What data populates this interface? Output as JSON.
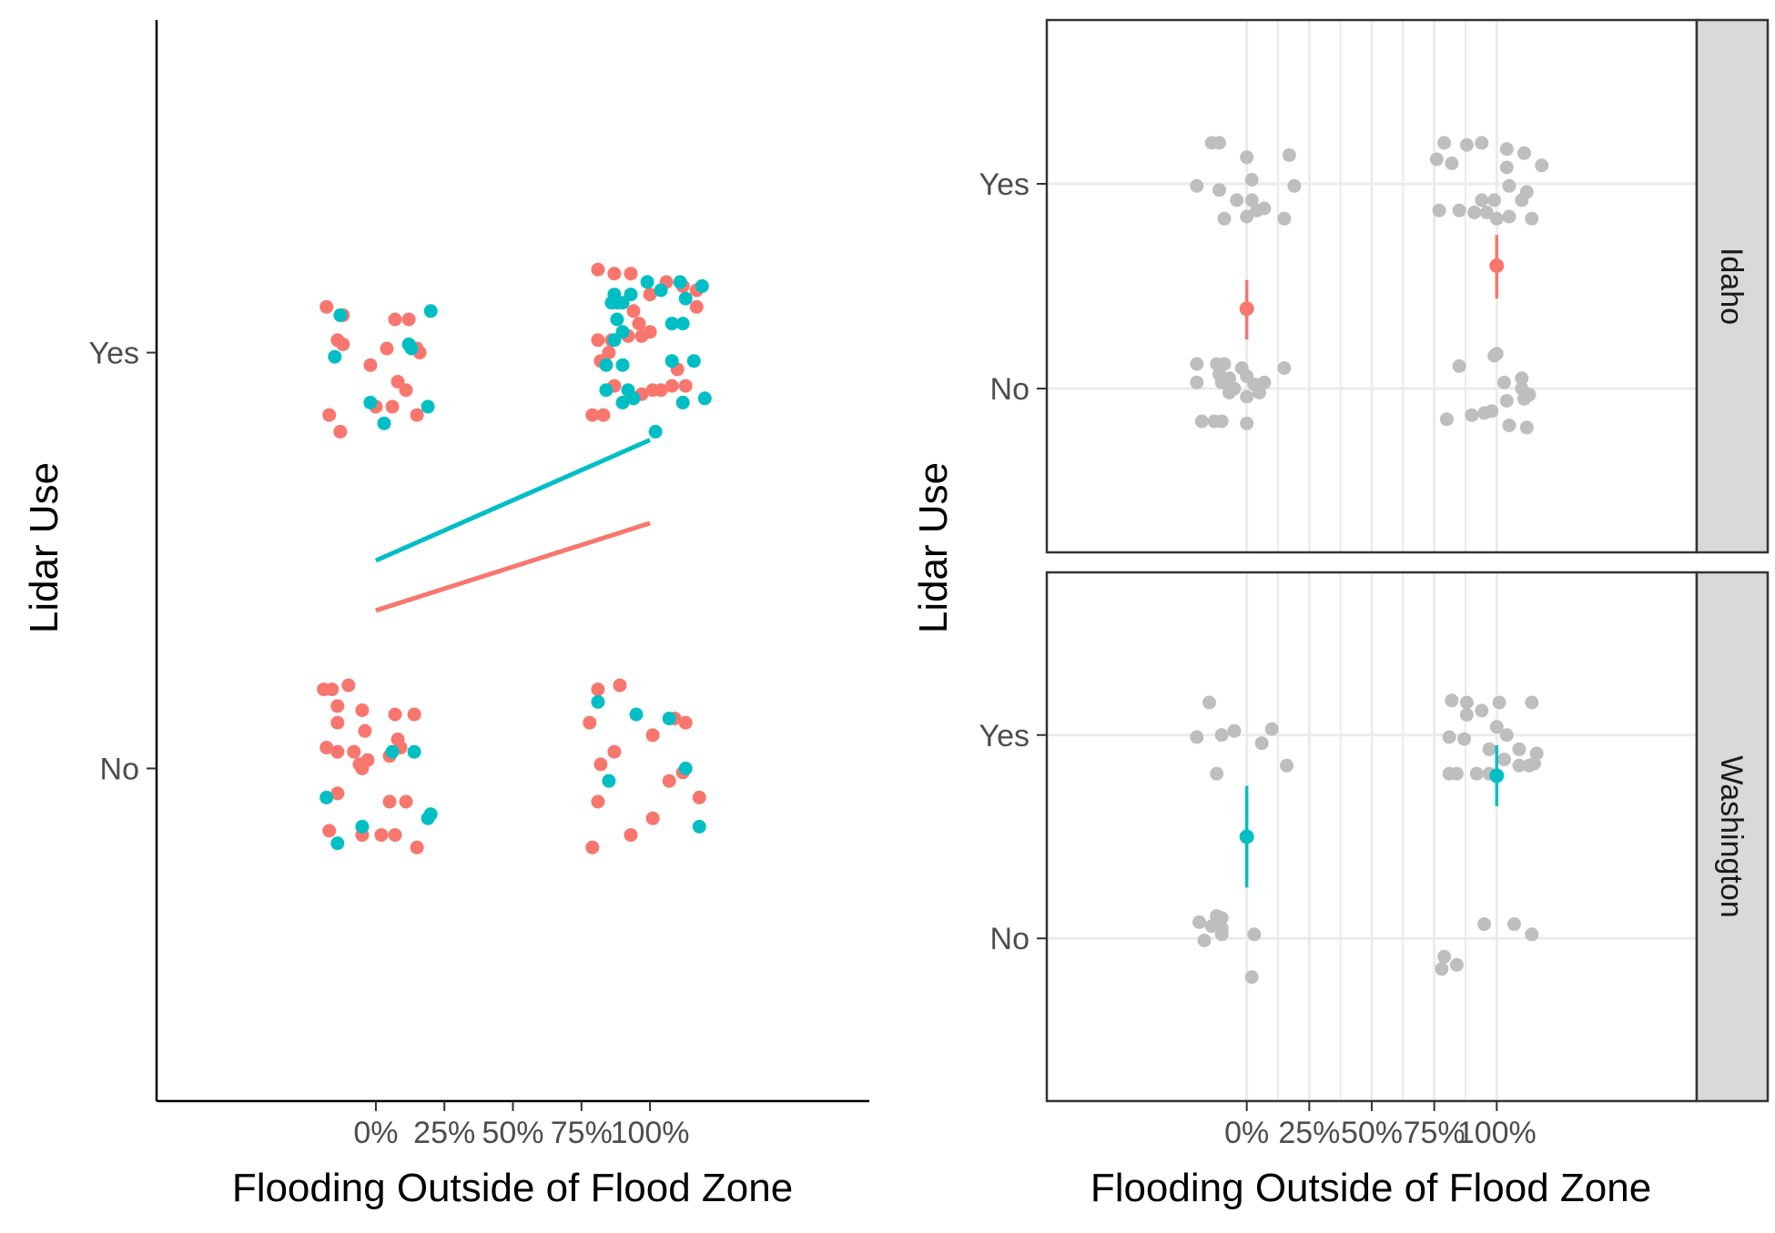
{
  "chart_data": [
    {
      "type": "scatter",
      "xlabel": "Flooding Outside of Flood Zone",
      "ylabel": "Lidar Use",
      "x_ticks": [
        "0%",
        "25%",
        "50%",
        "75%",
        "100%"
      ],
      "x_tick_values": [
        0,
        0.25,
        0.5,
        0.75,
        1
      ],
      "xlim": [
        -0.8,
        1.8
      ],
      "y_ticks": [
        "No",
        "Yes"
      ],
      "y_tick_values": [
        0,
        1
      ],
      "ylim": [
        -0.8,
        1.8
      ],
      "grid": false,
      "colors": {
        "series_a": "#F8766D",
        "series_b": "#00BFC4"
      },
      "series": [
        {
          "color": "#F8766D",
          "points": [
            [
              -0.18,
              1.11
            ],
            [
              -0.12,
              1.09
            ],
            [
              -0.14,
              1.03
            ],
            [
              -0.12,
              1.02
            ],
            [
              0.04,
              1.01
            ],
            [
              0.07,
              1.08
            ],
            [
              0.16,
              1.0
            ],
            [
              0.12,
              1.08
            ],
            [
              0.15,
              1.01
            ],
            [
              -0.02,
              0.97
            ],
            [
              0.08,
              0.93
            ],
            [
              0.11,
              0.91
            ],
            [
              -0.17,
              0.85
            ],
            [
              -0.13,
              0.81
            ],
            [
              0.0,
              0.87
            ],
            [
              0.06,
              0.87
            ],
            [
              0.15,
              0.85
            ],
            [
              0.81,
              1.2
            ],
            [
              0.87,
              1.19
            ],
            [
              0.93,
              1.19
            ],
            [
              0.94,
              1.1
            ],
            [
              1.0,
              1.14
            ],
            [
              1.06,
              1.17
            ],
            [
              1.12,
              1.16
            ],
            [
              1.17,
              1.15
            ],
            [
              1.17,
              1.11
            ],
            [
              0.81,
              1.03
            ],
            [
              0.86,
              1.03
            ],
            [
              0.92,
              1.04
            ],
            [
              0.96,
              1.07
            ],
            [
              0.97,
              1.04
            ],
            [
              1.0,
              1.05
            ],
            [
              0.82,
              0.98
            ],
            [
              0.85,
              1.0
            ],
            [
              1.1,
              0.96
            ],
            [
              0.87,
              0.92
            ],
            [
              0.97,
              0.9
            ],
            [
              1.01,
              0.91
            ],
            [
              1.04,
              0.91
            ],
            [
              1.08,
              0.92
            ],
            [
              1.13,
              0.92
            ],
            [
              0.79,
              0.85
            ],
            [
              0.83,
              0.85
            ],
            [
              -0.19,
              0.19
            ],
            [
              -0.16,
              0.19
            ],
            [
              -0.1,
              0.2
            ],
            [
              -0.14,
              0.15
            ],
            [
              -0.05,
              0.14
            ],
            [
              0.07,
              0.13
            ],
            [
              0.14,
              0.13
            ],
            [
              -0.14,
              0.11
            ],
            [
              -0.04,
              0.09
            ],
            [
              -0.18,
              0.05
            ],
            [
              -0.14,
              0.04
            ],
            [
              -0.08,
              0.04
            ],
            [
              -0.06,
              0.01
            ],
            [
              -0.03,
              0.02
            ],
            [
              -0.05,
              0.0
            ],
            [
              0.08,
              0.07
            ],
            [
              0.09,
              0.05
            ],
            [
              0.05,
              0.03
            ],
            [
              -0.14,
              -0.06
            ],
            [
              0.05,
              -0.08
            ],
            [
              0.11,
              -0.08
            ],
            [
              -0.17,
              -0.15
            ],
            [
              -0.05,
              -0.16
            ],
            [
              0.02,
              -0.16
            ],
            [
              0.07,
              -0.16
            ],
            [
              0.15,
              -0.19
            ],
            [
              0.81,
              0.19
            ],
            [
              0.89,
              0.2
            ],
            [
              0.78,
              0.11
            ],
            [
              1.09,
              0.12
            ],
            [
              1.13,
              0.11
            ],
            [
              1.01,
              0.08
            ],
            [
              0.87,
              0.04
            ],
            [
              0.82,
              0.01
            ],
            [
              1.12,
              -0.01
            ],
            [
              1.07,
              -0.03
            ],
            [
              0.81,
              -0.08
            ],
            [
              1.18,
              -0.07
            ],
            [
              1.01,
              -0.12
            ],
            [
              0.79,
              -0.19
            ],
            [
              0.93,
              -0.16
            ]
          ],
          "fit": {
            "x": [
              0,
              1
            ],
            "y": [
              0.38,
              0.59
            ]
          }
        },
        {
          "color": "#00BFC4",
          "points": [
            [
              -0.13,
              1.09
            ],
            [
              0.2,
              1.1
            ],
            [
              0.12,
              1.02
            ],
            [
              0.13,
              1.01
            ],
            [
              -0.15,
              0.99
            ],
            [
              -0.02,
              0.88
            ],
            [
              0.03,
              0.83
            ],
            [
              0.19,
              0.87
            ],
            [
              0.99,
              1.17
            ],
            [
              1.11,
              1.17
            ],
            [
              1.19,
              1.16
            ],
            [
              0.87,
              1.14
            ],
            [
              0.93,
              1.14
            ],
            [
              0.9,
              1.12
            ],
            [
              0.88,
              1.12
            ],
            [
              1.04,
              1.15
            ],
            [
              1.13,
              1.13
            ],
            [
              0.86,
              1.12
            ],
            [
              0.88,
              1.08
            ],
            [
              1.08,
              1.07
            ],
            [
              1.12,
              1.07
            ],
            [
              0.9,
              1.05
            ],
            [
              0.87,
              1.03
            ],
            [
              0.84,
              0.97
            ],
            [
              0.9,
              0.97
            ],
            [
              1.08,
              0.98
            ],
            [
              1.16,
              0.98
            ],
            [
              0.84,
              0.91
            ],
            [
              0.92,
              0.91
            ],
            [
              0.94,
              0.89
            ],
            [
              0.9,
              0.88
            ],
            [
              1.12,
              0.88
            ],
            [
              1.2,
              0.89
            ],
            [
              1.02,
              0.81
            ],
            [
              -0.18,
              -0.07
            ],
            [
              -0.14,
              -0.18
            ],
            [
              -0.05,
              -0.14
            ],
            [
              0.06,
              0.04
            ],
            [
              0.14,
              0.04
            ],
            [
              0.19,
              -0.12
            ],
            [
              0.2,
              -0.11
            ],
            [
              0.81,
              0.16
            ],
            [
              0.95,
              0.13
            ],
            [
              1.07,
              0.12
            ],
            [
              1.13,
              0.0
            ],
            [
              0.85,
              -0.03
            ],
            [
              1.18,
              -0.14
            ]
          ],
          "fit": {
            "x": [
              0,
              1
            ],
            "y": [
              0.5,
              0.79
            ]
          }
        }
      ]
    },
    {
      "type": "scatter",
      "xlabel": "Flooding Outside of Flood Zone",
      "ylabel": "Lidar Use",
      "x_ticks": [
        "0%",
        "25%",
        "50%",
        "75%",
        "100%"
      ],
      "x_tick_values": [
        0,
        0.25,
        0.5,
        0.75,
        1
      ],
      "xlim": [
        -0.8,
        1.8
      ],
      "y_ticks": [
        "No",
        "Yes"
      ],
      "y_tick_values": [
        0,
        1
      ],
      "ylim": [
        -0.8,
        1.8
      ],
      "grid": true,
      "point_color": "#BEBEBE",
      "panels": [
        {
          "strip": "Idaho",
          "estimate_color": "#F8766D",
          "estimates": [
            {
              "x": 0,
              "y": 0.39,
              "lo": 0.24,
              "hi": 0.53
            },
            {
              "x": 1,
              "y": 0.6,
              "lo": 0.44,
              "hi": 0.75
            }
          ],
          "points": [
            [
              -0.14,
              1.2
            ],
            [
              -0.11,
              1.2
            ],
            [
              0.0,
              1.13
            ],
            [
              0.17,
              1.14
            ],
            [
              -0.2,
              0.99
            ],
            [
              -0.11,
              0.97
            ],
            [
              0.02,
              1.02
            ],
            [
              0.19,
              0.99
            ],
            [
              -0.04,
              0.92
            ],
            [
              0.02,
              0.92
            ],
            [
              -0.09,
              0.83
            ],
            [
              0.0,
              0.84
            ],
            [
              0.04,
              0.87
            ],
            [
              0.07,
              0.88
            ],
            [
              0.15,
              0.83
            ],
            [
              0.79,
              1.2
            ],
            [
              0.88,
              1.19
            ],
            [
              0.94,
              1.2
            ],
            [
              1.04,
              1.17
            ],
            [
              1.11,
              1.15
            ],
            [
              0.76,
              1.12
            ],
            [
              0.82,
              1.1
            ],
            [
              1.04,
              1.08
            ],
            [
              1.18,
              1.09
            ],
            [
              1.05,
              0.99
            ],
            [
              1.12,
              0.96
            ],
            [
              0.94,
              0.92
            ],
            [
              0.99,
              0.92
            ],
            [
              1.1,
              0.92
            ],
            [
              0.77,
              0.87
            ],
            [
              0.85,
              0.87
            ],
            [
              0.91,
              0.86
            ],
            [
              0.96,
              0.86
            ],
            [
              1.0,
              0.83
            ],
            [
              1.05,
              0.84
            ],
            [
              1.14,
              0.83
            ],
            [
              -0.12,
              0.12
            ],
            [
              -0.2,
              0.12
            ],
            [
              -0.09,
              0.12
            ],
            [
              -0.02,
              0.1
            ],
            [
              -0.07,
              0.05
            ],
            [
              0.0,
              0.06
            ],
            [
              -0.11,
              0.07
            ],
            [
              0.15,
              0.1
            ],
            [
              -0.2,
              0.03
            ],
            [
              -0.1,
              0.03
            ],
            [
              -0.05,
              0.0
            ],
            [
              0.03,
              0.02
            ],
            [
              0.07,
              0.03
            ],
            [
              -0.07,
              -0.02
            ],
            [
              0.0,
              -0.04
            ],
            [
              0.05,
              -0.02
            ],
            [
              -0.18,
              -0.16
            ],
            [
              -0.13,
              -0.16
            ],
            [
              -0.1,
              -0.16
            ],
            [
              0.0,
              -0.17
            ],
            [
              1.0,
              0.17
            ],
            [
              0.99,
              0.16
            ],
            [
              0.85,
              0.11
            ],
            [
              1.1,
              0.05
            ],
            [
              1.03,
              0.03
            ],
            [
              1.1,
              0.0
            ],
            [
              1.13,
              -0.03
            ],
            [
              1.11,
              -0.05
            ],
            [
              1.04,
              -0.06
            ],
            [
              0.8,
              -0.15
            ],
            [
              0.9,
              -0.13
            ],
            [
              0.95,
              -0.12
            ],
            [
              0.98,
              -0.11
            ],
            [
              1.05,
              -0.18
            ],
            [
              1.12,
              -0.19
            ]
          ]
        },
        {
          "strip": "Washington",
          "estimate_color": "#00BFC4",
          "estimates": [
            {
              "x": 0,
              "y": 0.5,
              "lo": 0.25,
              "hi": 0.75
            },
            {
              "x": 1,
              "y": 0.8,
              "lo": 0.65,
              "hi": 0.95
            }
          ],
          "points": [
            [
              -0.15,
              1.16
            ],
            [
              -0.2,
              0.99
            ],
            [
              -0.1,
              1.0
            ],
            [
              -0.05,
              1.02
            ],
            [
              0.06,
              0.96
            ],
            [
              0.1,
              1.03
            ],
            [
              0.16,
              0.85
            ],
            [
              -0.12,
              0.81
            ],
            [
              0.82,
              1.17
            ],
            [
              0.88,
              1.16
            ],
            [
              1.01,
              1.16
            ],
            [
              1.14,
              1.16
            ],
            [
              0.88,
              1.1
            ],
            [
              0.94,
              1.12
            ],
            [
              0.81,
              0.99
            ],
            [
              0.87,
              0.98
            ],
            [
              1.0,
              1.04
            ],
            [
              1.04,
              1.0
            ],
            [
              0.97,
              0.93
            ],
            [
              1.09,
              0.93
            ],
            [
              1.03,
              0.88
            ],
            [
              1.16,
              0.91
            ],
            [
              1.09,
              0.85
            ],
            [
              0.92,
              0.81
            ],
            [
              0.97,
              0.81
            ],
            [
              1.13,
              0.85
            ],
            [
              1.15,
              0.86
            ],
            [
              0.81,
              0.81
            ],
            [
              0.84,
              0.81
            ],
            [
              -0.19,
              0.08
            ],
            [
              -0.12,
              0.11
            ],
            [
              -0.1,
              0.1
            ],
            [
              -0.14,
              0.06
            ],
            [
              -0.1,
              0.05
            ],
            [
              -0.1,
              0.02
            ],
            [
              0.03,
              0.02
            ],
            [
              -0.17,
              -0.01
            ],
            [
              0.02,
              -0.19
            ],
            [
              0.95,
              0.07
            ],
            [
              1.07,
              0.07
            ],
            [
              0.79,
              -0.09
            ],
            [
              0.78,
              -0.15
            ],
            [
              0.84,
              -0.13
            ],
            [
              1.14,
              0.02
            ]
          ]
        }
      ]
    }
  ]
}
